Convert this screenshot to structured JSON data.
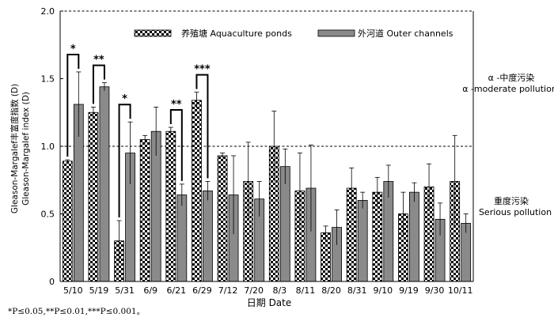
{
  "chart_data": {
    "type": "bar",
    "ylabel_lines": [
      "Gleason-Margalef丰富度指数 (D)",
      "Gleason-Margalef index (D)"
    ],
    "xlabel": "日期 Date",
    "ylim": [
      0,
      2.0
    ],
    "y_ticks": [
      "0",
      "0.5",
      "1.0",
      "1.5",
      "2.0"
    ],
    "categories": [
      "5/10",
      "5/19",
      "5/31",
      "6/9",
      "6/21",
      "6/29",
      "7/12",
      "7/20",
      "8/3",
      "8/11",
      "8/20",
      "8/31",
      "9/10",
      "9/19",
      "9/30",
      "10/11"
    ],
    "series": [
      {
        "name": "养殖塘 Aquaculture ponds",
        "pattern": "checker",
        "values": [
          0.89,
          1.25,
          0.3,
          1.05,
          1.11,
          1.34,
          0.93,
          0.74,
          1.0,
          0.67,
          0.36,
          0.69,
          0.66,
          0.5,
          0.7,
          0.74
        ],
        "errors": [
          0.01,
          0.04,
          0.15,
          0.03,
          0.03,
          0.06,
          0.02,
          0.29,
          0.26,
          0.28,
          0.05,
          0.15,
          0.11,
          0.16,
          0.17,
          0.34
        ]
      },
      {
        "name": "外河道 Outer channels",
        "color": "#8a8a8a",
        "values": [
          1.31,
          1.44,
          0.95,
          1.11,
          0.64,
          0.67,
          0.64,
          0.61,
          0.85,
          0.69,
          0.4,
          0.6,
          0.74,
          0.66,
          0.46,
          0.43
        ],
        "errors": [
          0.24,
          0.03,
          0.23,
          0.18,
          0.08,
          0.07,
          0.29,
          0.13,
          0.13,
          0.32,
          0.13,
          0.06,
          0.12,
          0.07,
          0.12,
          0.07
        ]
      }
    ],
    "reference_lines": [
      {
        "y": 2.0,
        "style": "dashed"
      },
      {
        "y": 1.0,
        "style": "dashed"
      }
    ],
    "annotations": [
      {
        "lines": [
          "α -中度污染",
          "α -moderate pollution"
        ]
      },
      {
        "lines": [
          "重度污染",
          "Serious pollution"
        ]
      }
    ],
    "significance": [
      {
        "category_index": 0,
        "label": "*"
      },
      {
        "category_index": 1,
        "label": "**"
      },
      {
        "category_index": 2,
        "label": "*"
      },
      {
        "category_index": 4,
        "label": "**"
      },
      {
        "category_index": 5,
        "label": "***"
      }
    ],
    "footnote": "*P≤0.05,**P≤0.01,***P≤0.001。",
    "legend_position": "top-center",
    "grid": false
  }
}
